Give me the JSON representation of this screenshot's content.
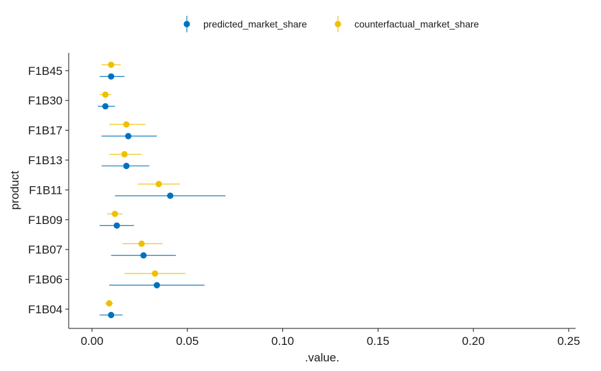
{
  "chart_data": {
    "type": "scatter",
    "xlabel": ".value.",
    "ylabel": "product",
    "xlim": [
      -0.012,
      0.26
    ],
    "x_ticks": [
      0.0,
      0.05,
      0.1,
      0.15,
      0.2,
      0.25
    ],
    "x_tick_labels": [
      "0.00",
      "0.05",
      "0.10",
      "0.15",
      "0.20",
      "0.25"
    ],
    "grid": false,
    "legend_position": "top",
    "categories": [
      "F1B04",
      "F1B06",
      "F1B07",
      "F1B09",
      "F1B11",
      "F1B13",
      "F1B17",
      "F1B30",
      "F1B45"
    ],
    "series": [
      {
        "name": "predicted_market_share",
        "color": "#0072BD",
        "values": [
          0.01,
          0.034,
          0.027,
          0.013,
          0.041,
          0.018,
          0.019,
          0.007,
          0.01
        ],
        "lower": [
          0.004,
          0.009,
          0.01,
          0.004,
          0.012,
          0.005,
          0.005,
          0.003,
          0.004
        ],
        "upper": [
          0.016,
          0.059,
          0.044,
          0.022,
          0.07,
          0.03,
          0.034,
          0.012,
          0.017
        ]
      },
      {
        "name": "counterfactual_market_share",
        "color": "#EFC000",
        "values": [
          0.009,
          0.033,
          0.026,
          0.012,
          0.035,
          0.017,
          0.018,
          0.007,
          0.01
        ],
        "lower": [
          0.007,
          0.017,
          0.016,
          0.008,
          0.024,
          0.009,
          0.009,
          0.004,
          0.005
        ],
        "upper": [
          0.011,
          0.049,
          0.037,
          0.016,
          0.046,
          0.026,
          0.028,
          0.01,
          0.015
        ]
      }
    ]
  }
}
